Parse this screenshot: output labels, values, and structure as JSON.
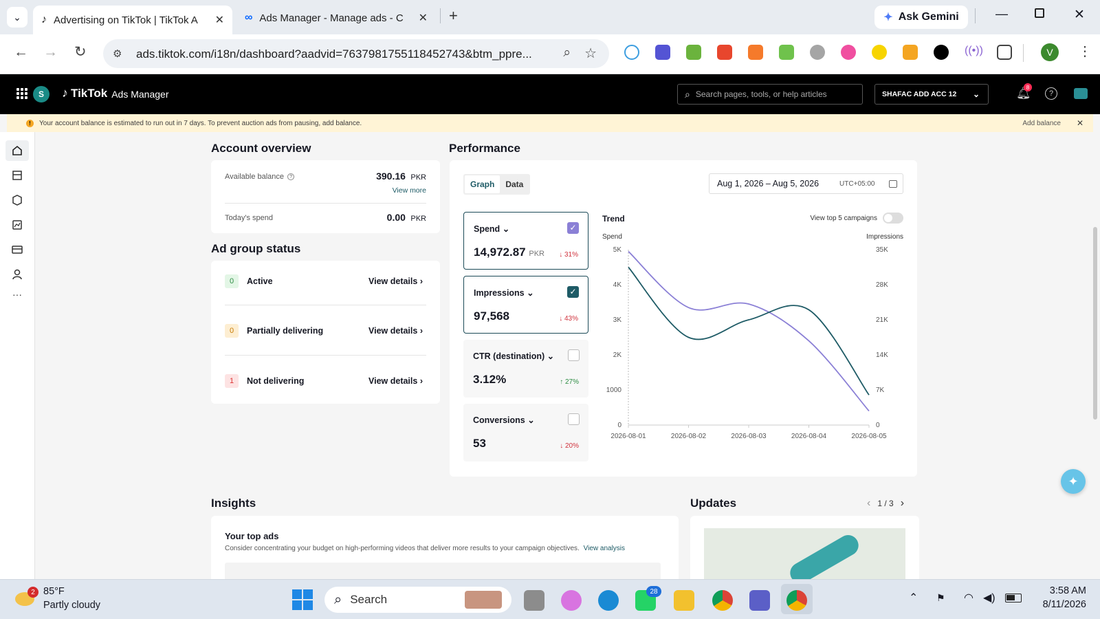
{
  "browser": {
    "tabs": [
      {
        "title": "Advertising on TikTok | TikTok A",
        "active": true
      },
      {
        "title": "Ads Manager - Manage ads - C",
        "active": false
      }
    ],
    "url": "ads.tiktok.com/i18n/dashboard?aadvid=7637981755118452743&btm_ppre...",
    "gemini_label": "Ask Gemini",
    "profile_initial": "V"
  },
  "header": {
    "account_initial": "S",
    "brand": "TikTok",
    "brand_sub": "Ads Manager",
    "search_placeholder": "Search pages, tools, or help articles",
    "account_name": "SHAFAC ADD ACC 12",
    "notif_count": "8"
  },
  "banner": {
    "message": "Your account balance is estimated to run out in 7 days. To prevent auction ads from pausing, add balance.",
    "action": "Add balance"
  },
  "account_overview": {
    "title": "Account overview",
    "balance_label": "Available balance",
    "balance_value": "390.16",
    "currency": "PKR",
    "view_more": "View more",
    "spend_label": "Today's spend",
    "spend_value": "0.00",
    "spend_currency": "PKR"
  },
  "ad_group_status": {
    "title": "Ad group status",
    "rows": [
      {
        "count": "0",
        "label": "Active",
        "action": "View details"
      },
      {
        "count": "0",
        "label": "Partially delivering",
        "action": "View details"
      },
      {
        "count": "1",
        "label": "Not delivering",
        "action": "View details"
      }
    ]
  },
  "performance": {
    "title": "Performance",
    "tabs": [
      "Graph",
      "Data"
    ],
    "date_range": "Aug 1, 2026 – Aug 5, 2026",
    "timezone": "UTC+05:00",
    "metrics": [
      {
        "label": "Spend",
        "value": "14,972.87",
        "unit": "PKR",
        "change": "↓ 31%",
        "checked": true
      },
      {
        "label": "Impressions",
        "value": "97,568",
        "unit": "",
        "change": "↓ 43%",
        "checked": true
      },
      {
        "label": "CTR (destination)",
        "value": "3.12%",
        "unit": "",
        "change": "↑ 27%",
        "checked": false
      },
      {
        "label": "Conversions",
        "value": "53",
        "unit": "",
        "change": "↓ 20%",
        "checked": false
      }
    ],
    "trend_label": "Trend",
    "toggle_label": "View top 5 campaigns"
  },
  "chart_data": {
    "type": "line",
    "title": "Trend",
    "x": [
      "2026-08-01",
      "2026-08-02",
      "2026-08-03",
      "2026-08-04",
      "2026-08-05"
    ],
    "y_left_label": "Spend",
    "y_right_label": "Impressions",
    "y_left_ticks": [
      "0",
      "1000",
      "2K",
      "3K",
      "4K",
      "5K"
    ],
    "y_right_ticks": [
      "0",
      "7K",
      "14K",
      "21K",
      "28K",
      "35K"
    ],
    "y_left_range": [
      0,
      5000
    ],
    "y_right_range": [
      0,
      35000
    ],
    "series": [
      {
        "name": "Spend",
        "axis": "left",
        "color": "#8b80d6",
        "values": [
          4950,
          3350,
          3450,
          2400,
          400
        ]
      },
      {
        "name": "Impressions",
        "axis": "right",
        "color": "#1e5b66",
        "values": [
          31500,
          17500,
          21000,
          23000,
          6000
        ]
      }
    ]
  },
  "insights": {
    "title": "Insights",
    "top_ads_title": "Your top ads",
    "top_ads_desc": "Consider concentrating your budget on high-performing videos that deliver more results to your campaign objectives.",
    "view_analysis": "View analysis"
  },
  "updates": {
    "title": "Updates",
    "pager": "1 / 3"
  },
  "taskbar": {
    "weather_temp": "85°F",
    "weather_desc": "Partly cloudy",
    "weather_badge": "2",
    "search_label": "Search",
    "whatsapp_badge": "28",
    "time": "3:58 AM",
    "date": "8/11/2026"
  },
  "colors": {
    "accent": "#1e5b66",
    "spend_line": "#8b80d6",
    "brand_cyan": "#25f4ee",
    "brand_red": "#fe2c55"
  }
}
